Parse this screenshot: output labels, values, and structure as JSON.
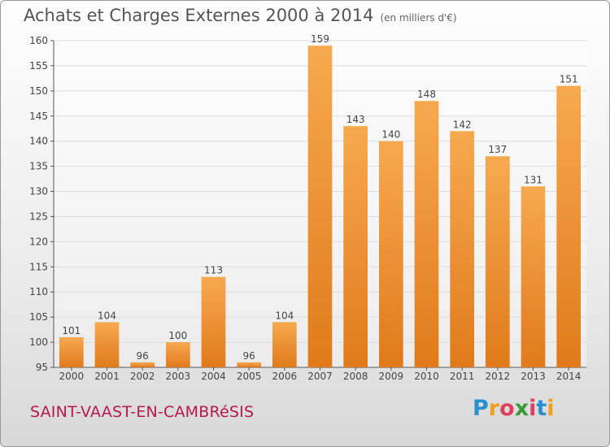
{
  "title": "Achats et Charges Externes 2000 à 2014",
  "subtitle": "(en milliers d'€)",
  "commune": "SAINT-VAAST-EN-CAMBRéSIS",
  "logo": {
    "text": "Proxiti",
    "letters": [
      {
        "ch": "P",
        "color": "#2a8fd0"
      },
      {
        "ch": "r",
        "color": "#f0a020"
      },
      {
        "ch": "o",
        "color": "#e04060"
      },
      {
        "ch": "x",
        "color": "#3a9a3a"
      },
      {
        "ch": "i",
        "color": "#e04060"
      },
      {
        "ch": "t",
        "color": "#2a8fd0"
      },
      {
        "ch": "i",
        "color": "#f0a020"
      }
    ]
  },
  "colors": {
    "bar_light": "#f7a94f",
    "bar_dark": "#e07a1c",
    "grid": "#dcdcdc",
    "axis": "#555555",
    "text": "#444444"
  },
  "chart_data": {
    "type": "bar",
    "categories": [
      "2000",
      "2001",
      "2002",
      "2003",
      "2004",
      "2005",
      "2006",
      "2007",
      "2008",
      "2009",
      "2010",
      "2011",
      "2012",
      "2013",
      "2014"
    ],
    "values": [
      101,
      104,
      96,
      100,
      113,
      96,
      104,
      159,
      143,
      140,
      148,
      142,
      137,
      131,
      151
    ],
    "title": "Achats et Charges Externes 2000 à 2014",
    "subtitle": "(en milliers d'€)",
    "xlabel": "",
    "ylabel": "",
    "ylim": [
      95,
      160
    ],
    "yticks": [
      95,
      100,
      105,
      110,
      115,
      120,
      125,
      130,
      135,
      140,
      145,
      150,
      155,
      160
    ],
    "grid": true,
    "legend": "none"
  }
}
